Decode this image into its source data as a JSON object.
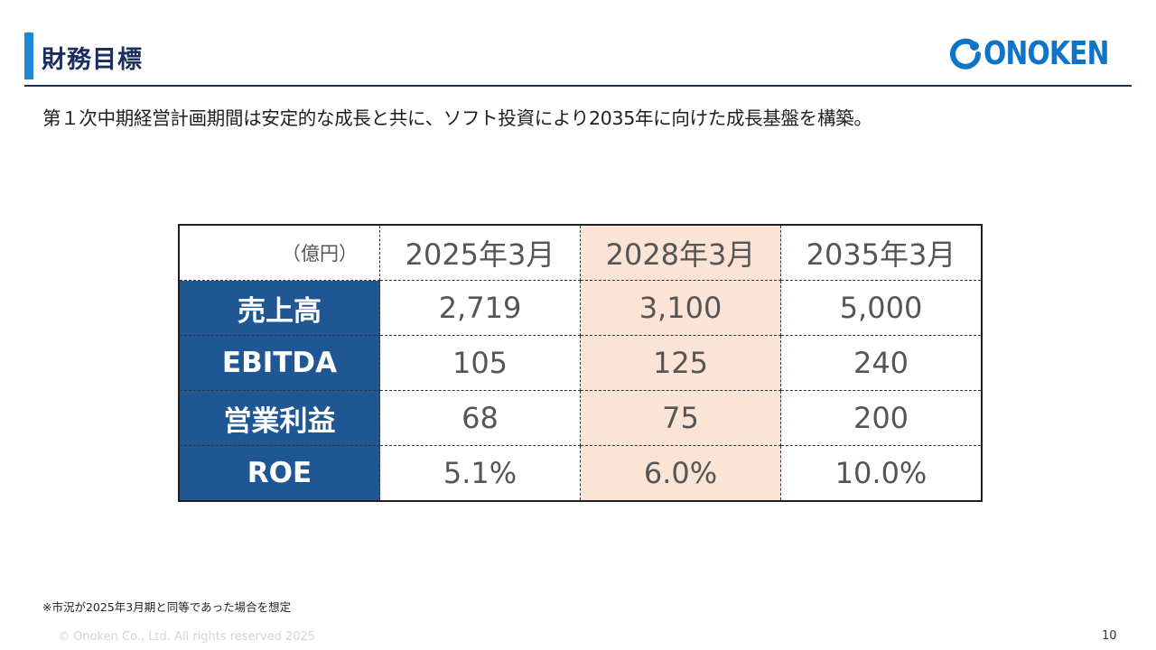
{
  "header": {
    "title": "財務目標",
    "logo_text": "ONOKEN",
    "colors": {
      "accent": "#1e88d6",
      "navy": "#1b2f5e",
      "logo": "#0f74c8"
    }
  },
  "subtitle": "第１次中期経営計画期間は安定的な成長と共に、ソフト投資により2035年に向けた成長基盤を構築。",
  "table": {
    "unit": "（億円）",
    "columns": [
      "2025年3月",
      "2028年3月",
      "2035年3月"
    ],
    "highlight_column": "2028年3月",
    "rows": [
      {
        "label": "売上高",
        "values": [
          "2,719",
          "3,100",
          "5,000"
        ]
      },
      {
        "label": "EBITDA",
        "values": [
          "105",
          "125",
          "240"
        ]
      },
      {
        "label": "営業利益",
        "values": [
          "68",
          "75",
          "200"
        ]
      },
      {
        "label": "ROE",
        "values": [
          "5.1%",
          "6.0%",
          "10.0%"
        ]
      }
    ],
    "colors": {
      "row_header": "#1f5694",
      "highlight": "#fbe3d6"
    }
  },
  "footnote": "※市況が2025年3月期と同等であった場合を想定",
  "footer": {
    "copyright": "© Onoken Co., Ltd. All rights reserved 2025",
    "page_number": "10"
  }
}
